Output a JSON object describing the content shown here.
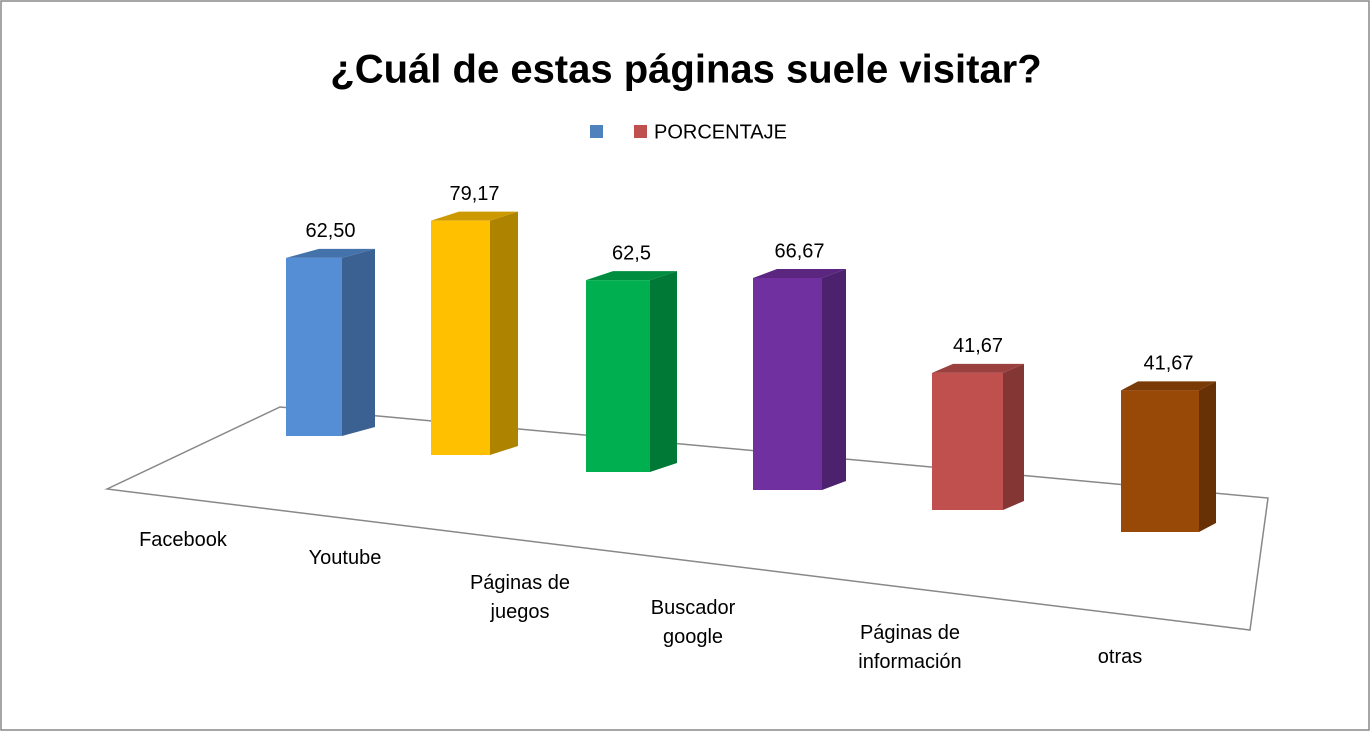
{
  "chart_data": {
    "type": "bar3d",
    "title": "¿Cuál de estas páginas suele visitar?",
    "categories": [
      "Facebook",
      "Youtube",
      "Páginas de juegos",
      "Buscador google",
      "Páginas de información",
      "otras"
    ],
    "series": [
      {
        "name": "PORCENTAJE",
        "color": "#c0504d",
        "colors": [
          "#558ed5",
          "#ffc000",
          "#00b050",
          "#7030a0",
          "#c0504d",
          "#984807"
        ],
        "values": [
          62.5,
          79.17,
          62.5,
          66.67,
          41.67,
          41.67
        ],
        "value_labels": [
          "62,50",
          "79,17",
          "62,5",
          "66,67",
          "41,67",
          "41,67"
        ]
      }
    ],
    "legend": "top"
  }
}
